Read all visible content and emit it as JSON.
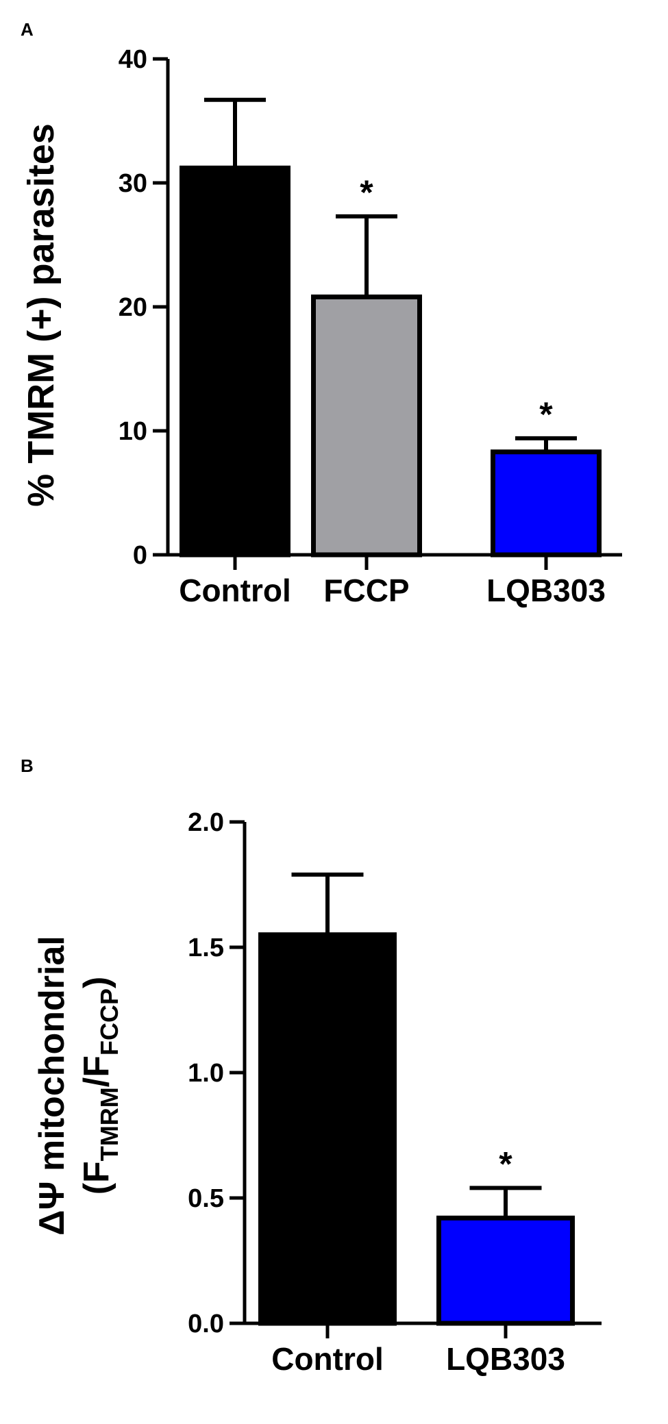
{
  "chart_data": [
    {
      "panel": "A",
      "type": "bar",
      "ylabel": "% TMRM (+) parasites",
      "ylim": [
        0,
        40
      ],
      "yticks": [
        "0",
        "10",
        "20",
        "30",
        "40"
      ],
      "categories": [
        "Control",
        "FCCP",
        "LQB303"
      ],
      "values": [
        31.2,
        20.8,
        8.3
      ],
      "errors": [
        5.5,
        6.5,
        1.1
      ],
      "significance": [
        "",
        "*",
        "*"
      ],
      "colors": [
        "#000000",
        "#a0a0a4",
        "#0000ff"
      ]
    },
    {
      "panel": "B",
      "type": "bar",
      "ylabel_main": "ΔΨ mitochondrial",
      "ylabel_sub": {
        "open": "(F",
        "sub1": "TMRM",
        "slash": "/F",
        "sub2": "FCCP",
        "close": ")"
      },
      "ylim": [
        0,
        2
      ],
      "yticks": [
        "0.0",
        "0.5",
        "1.0",
        "1.5",
        "2.0"
      ],
      "categories": [
        "Control",
        "LQB303"
      ],
      "values": [
        1.55,
        0.42
      ],
      "errors": [
        0.24,
        0.12
      ],
      "significance": [
        "",
        "*"
      ],
      "colors": [
        "#000000",
        "#0000ff"
      ]
    }
  ]
}
